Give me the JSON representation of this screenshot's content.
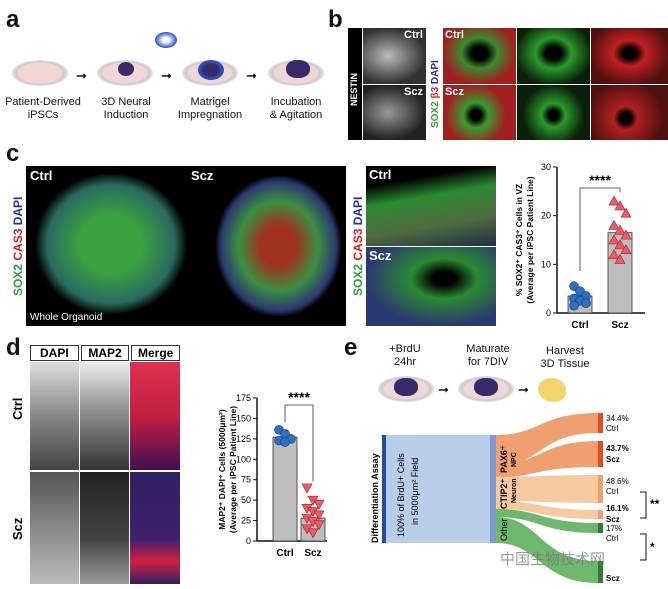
{
  "panels": {
    "a": "a",
    "b": "b",
    "c": "c",
    "d": "d",
    "e": "e"
  },
  "panel_a": {
    "steps": [
      "Patient-Derived",
      "iPSCs",
      "3D Neural",
      "Induction",
      "Matrigel",
      "Impregnation",
      "Incubation",
      "& Agitation"
    ]
  },
  "panel_b": {
    "nestin": "NESTIN",
    "ctrl": "Ctrl",
    "scz": "Scz",
    "stain_sox2": "SOX2",
    "stain_b3": "β3",
    "stain_dapi": "DAPI"
  },
  "panel_c": {
    "ctrl": "Ctrl",
    "scz": "Scz",
    "stain_sox2": "SOX2",
    "stain_cas3": "CAS3",
    "stain_dapi": "DAPI",
    "whole": "Whole Organoid"
  },
  "panel_d": {
    "headers": [
      "DAPI",
      "MAP2",
      "Merge"
    ],
    "ctrl": "Ctrl",
    "scz": "Scz"
  },
  "panel_e": {
    "steps": [
      "+BrdU",
      "24hr",
      "Maturate",
      "for 7DIV",
      "Harvest",
      "3D Tissue"
    ],
    "assay": "Differentiation Assay",
    "source_line1": "100% of BrdU+ Cells",
    "source_line2": "in 5000μm² Field",
    "nodes": {
      "pax6": "PAX6⁺",
      "npc": "NPC",
      "ctip2": "CTIP2⁺",
      "neuron": "Neuron",
      "other": "Other"
    },
    "outputs": [
      {
        "value": "34.4%",
        "group": "Ctrl"
      },
      {
        "value": "43.7%",
        "group": "Scz"
      },
      {
        "value": "48.6%",
        "group": "Ctrl"
      },
      {
        "value": "16.1%",
        "group": "Scz"
      },
      {
        "value": "17%",
        "group": "Ctrl"
      },
      {
        "value": "",
        "group": "Scz"
      }
    ],
    "sig1": "**",
    "sig2": "*",
    "colors": {
      "source": "#b8cde8",
      "pax6": "#f0a070",
      "ctip2": "#f7c9a0",
      "other": "#6db86d"
    }
  },
  "watermark": "中国生物技术网",
  "chart_data": [
    {
      "type": "bar",
      "categories": [
        "Ctrl",
        "Scz"
      ],
      "values": [
        3.5,
        16.5
      ],
      "points": [
        [
          5.5,
          4.5,
          3.5,
          3,
          2.5,
          2,
          1.5
        ],
        [
          23,
          22,
          20.5,
          18,
          17,
          16,
          15,
          14,
          13,
          12,
          11
        ]
      ],
      "ylabel": "% SOX2⁺ CAS3⁺ Cells in VZ",
      "ylabel2": "(Average per iPSC Patient Line)",
      "ylim": [
        0,
        30
      ],
      "yticks": [
        0,
        10,
        20,
        30
      ],
      "significance": "****",
      "colors": {
        "bar": "#bdbdbd",
        "ctrl": "#2f6fc0",
        "scz": "#ee5a5f"
      }
    },
    {
      "type": "bar",
      "categories": [
        "Ctrl",
        "Scz"
      ],
      "values": [
        127,
        28
      ],
      "points": [
        [
          136,
          131,
          125,
          123,
          121
        ],
        [
          65,
          50,
          45,
          40,
          36,
          32,
          28,
          24,
          20,
          15,
          10
        ]
      ],
      "ylabel": "MAP2⁺ DAPI⁺ Cells (5000μm²)",
      "ylabel2": "(Average per iPSC Patient Line)",
      "ylim": [
        0,
        175
      ],
      "yticks": [
        0,
        25,
        50,
        75,
        100,
        125,
        150,
        175
      ],
      "significance": "****",
      "colors": {
        "bar": "#bdbdbd",
        "ctrl": "#2f6fc0",
        "scz": "#ee5a5f"
      }
    }
  ]
}
